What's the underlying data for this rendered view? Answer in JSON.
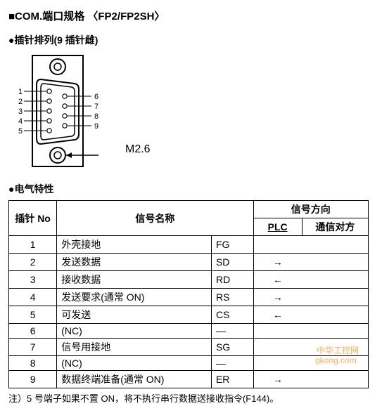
{
  "title": "■COM.端口规格 〈FP2/FP2SH〉",
  "pin_layout": {
    "heading": "●插针排列(9 插针雌)",
    "left_pins": [
      "1",
      "2",
      "3",
      "4",
      "5"
    ],
    "right_pins": [
      "6",
      "7",
      "8",
      "9"
    ],
    "screw_label": "M2.6"
  },
  "elec": {
    "heading": "●电气特性",
    "headers": {
      "pin_no": "插针 No",
      "signal_name": "信号名称",
      "direction_group": "信号方向",
      "plc": "PLC",
      "peer": "通信对方"
    },
    "rows": [
      {
        "no": "1",
        "name": "外壳接地",
        "abbr": "FG",
        "dir": ""
      },
      {
        "no": "2",
        "name": "发送数据",
        "abbr": "SD",
        "dir": "→"
      },
      {
        "no": "3",
        "name": "接收数据",
        "abbr": "RD",
        "dir": "←"
      },
      {
        "no": "4",
        "name": "发送要求(通常 ON)",
        "abbr": "RS",
        "dir": "→"
      },
      {
        "no": "5",
        "name": "可发送",
        "abbr": "CS",
        "dir": "←"
      },
      {
        "no": "6",
        "name": "(NC)",
        "abbr": "—",
        "dir": ""
      },
      {
        "no": "7",
        "name": "信号用接地",
        "abbr": "SG",
        "dir": ""
      },
      {
        "no": "8",
        "name": "(NC)",
        "abbr": "—",
        "dir": ""
      },
      {
        "no": "9",
        "name": "数据终端准备(通常 ON)",
        "abbr": "ER",
        "dir": "→"
      }
    ]
  },
  "note": "注）5 号端子如果不置 ON，将不执行串行数据送接收指令(F144)。",
  "watermark": {
    "text_top": "中华工控网",
    "text_bottom": "gkong.com",
    "color": "#ff9933"
  },
  "style": {
    "background_color": "#ffffff",
    "text_color": "#000000",
    "border_color": "#000000",
    "font_family": "SimSun",
    "font_size_body": 14
  }
}
